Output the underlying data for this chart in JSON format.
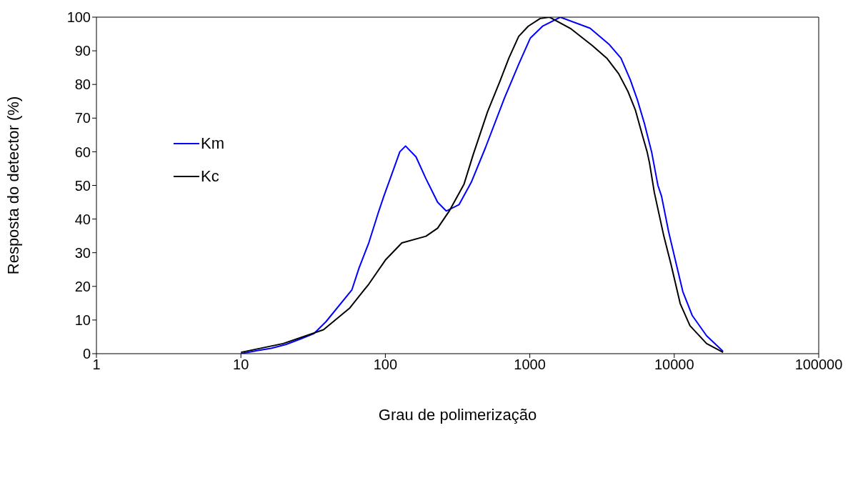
{
  "chart_data": {
    "type": "line",
    "xlabel": "Grau de polimerização",
    "ylabel": "Resposta do detector (%)",
    "log": "x",
    "xlim": [
      1,
      100000
    ],
    "xticks": [
      1,
      10,
      100,
      1000,
      10000,
      100000
    ],
    "ylim": [
      0,
      100
    ],
    "yticks": [
      0,
      10,
      20,
      30,
      40,
      50,
      60,
      70,
      80,
      90,
      100
    ],
    "legend": "top left",
    "marker": "none",
    "line_style": "solid",
    "series": [
      {
        "name": "Km",
        "color": "#0000ff",
        "x": [
          10,
          12.9,
          16.2,
          20.4,
          25.6,
          32.1,
          38.8,
          58.7,
          65.8,
          76.9,
          89.5,
          98,
          108,
          126,
          138,
          163,
          191,
          230,
          264,
          324,
          393,
          493,
          668,
          838,
          1009,
          1225,
          1626,
          2614,
          3524,
          4276,
          4962,
          5559,
          6223,
          6982,
          7709,
          8166,
          9145,
          10240,
          11470,
          13340,
          16750,
          21770
        ],
        "values": [
          0,
          0.9,
          1.6,
          2.7,
          4.3,
          6,
          9.5,
          19,
          25.5,
          33,
          42,
          47,
          52,
          60,
          61.7,
          58.5,
          52,
          45,
          42.4,
          44.3,
          50.9,
          61.2,
          76,
          86,
          93.8,
          97.3,
          100,
          96.7,
          92,
          87.8,
          81.4,
          75.4,
          68.3,
          59.8,
          50,
          46.8,
          36.2,
          27.3,
          18.4,
          11.3,
          5.3,
          0.7
        ]
      },
      {
        "name": "Kc",
        "color": "#000000",
        "x": [
          10,
          19.6,
          37.3,
          56.8,
          76.9,
          100,
          130,
          191,
          230,
          279,
          350,
          406,
          510,
          618,
          716,
          838,
          975,
          1180,
          1371,
          1932,
          2716,
          3412,
          4121,
          4795,
          5373,
          6026,
          6502,
          6745,
          7279,
          8472,
          9490,
          10990,
          12850,
          16750,
          21770
        ],
        "values": [
          0.4,
          3,
          7.1,
          13.6,
          20.7,
          27.8,
          32.9,
          34.9,
          37.3,
          42.6,
          50.3,
          59.2,
          71.9,
          80.7,
          87.8,
          94.3,
          97.3,
          99.6,
          100,
          96.5,
          91.5,
          87.8,
          83.2,
          77.8,
          72.5,
          64.8,
          59.8,
          56.6,
          47.9,
          34.9,
          26.6,
          14.9,
          8.3,
          3,
          0.4
        ]
      }
    ]
  }
}
